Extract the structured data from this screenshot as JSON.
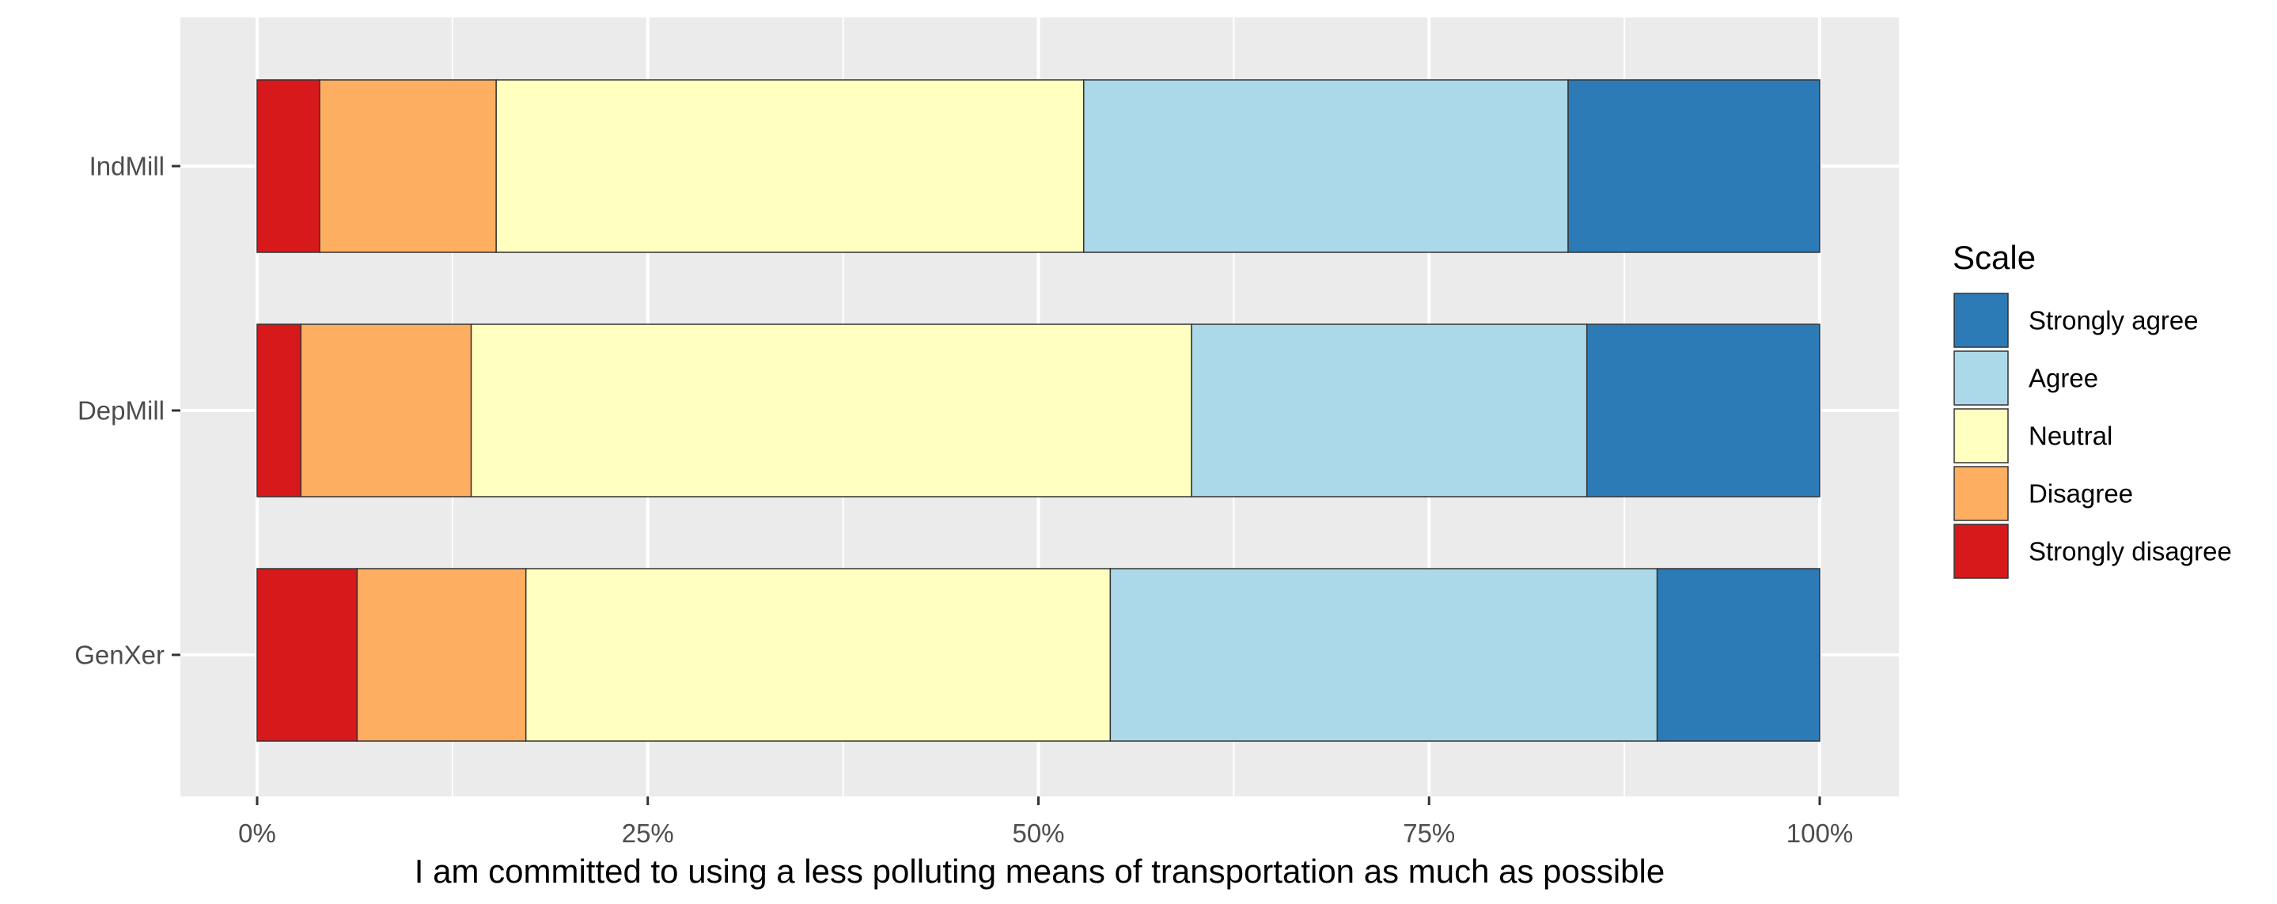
{
  "chart_data": {
    "type": "bar",
    "orientation": "horizontal",
    "stacked": true,
    "normalized": true,
    "title": "",
    "xlabel": "I am committed to using a less polluting means of transportation as much as possible",
    "ylabel": "",
    "xlim": [
      0,
      1
    ],
    "x_ticks": [
      {
        "value": 0,
        "label": "0%"
      },
      {
        "value": 0.25,
        "label": "25%"
      },
      {
        "value": 0.5,
        "label": "50%"
      },
      {
        "value": 0.75,
        "label": "75%"
      },
      {
        "value": 1,
        "label": "100%"
      }
    ],
    "categories": [
      "IndMill",
      "DepMill",
      "GenXer"
    ],
    "series": [
      {
        "name": "Strongly disagree",
        "color": "#D7191C",
        "values": [
          0.04,
          0.028,
          0.064
        ]
      },
      {
        "name": "Disagree",
        "color": "#FDAE61",
        "values": [
          0.113,
          0.109,
          0.108
        ]
      },
      {
        "name": "Neutral",
        "color": "#FFFFBF",
        "values": [
          0.376,
          0.461,
          0.374
        ]
      },
      {
        "name": "Agree",
        "color": "#ABD9E9",
        "values": [
          0.31,
          0.253,
          0.35
        ]
      },
      {
        "name": "Strongly agree",
        "color": "#2C7BB6",
        "values": [
          0.161,
          0.149,
          0.104
        ]
      }
    ],
    "legend": {
      "title": "Scale",
      "position": "right",
      "order": [
        "Strongly agree",
        "Agree",
        "Neutral",
        "Disagree",
        "Strongly disagree"
      ]
    },
    "grid": true,
    "panel_background": "#EBEBEB",
    "grid_color": "#FFFFFF"
  }
}
